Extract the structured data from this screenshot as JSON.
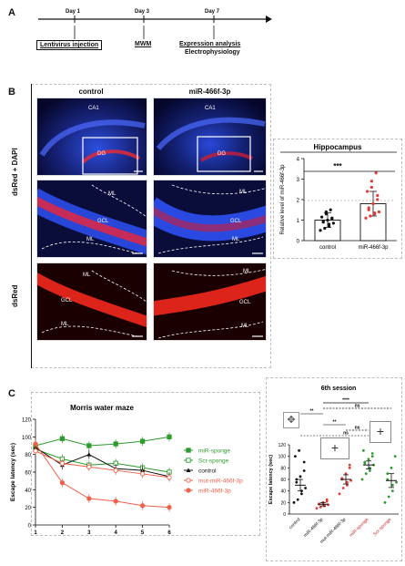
{
  "panel_a": {
    "letter": "A",
    "timeline": [
      {
        "day": "Day 1",
        "label": "Lentivirus injection",
        "boxed": true
      },
      {
        "day": "Day 3",
        "label": "MWM",
        "boxed": false
      },
      {
        "day": "Day 7",
        "label": "Expression analysis",
        "label2": "Electrophysiology",
        "boxed": false
      }
    ]
  },
  "panel_b": {
    "letter": "B",
    "col_titles": [
      "control",
      "miR-466f-3p"
    ],
    "row_labels": [
      "dsRed + DAPI",
      "dsRed"
    ],
    "region_labels": {
      "ca1": "CA1",
      "dg": "DG",
      "ml": "ML",
      "gcl": "GCL"
    },
    "colors": {
      "dapi": "#1f3fbf",
      "dsred": "#d81b1b"
    }
  },
  "panel_b_chart": {
    "chart_data": {
      "type": "bar",
      "title": "Hippocampus",
      "ylabel": "Relative level of miR-466f-3p",
      "categories": [
        "control",
        "miR-466f-3p"
      ],
      "values": [
        1.0,
        1.8
      ],
      "errors": [
        0.35,
        0.6
      ],
      "points": [
        [
          0.5,
          0.6,
          0.7,
          0.8,
          0.85,
          0.9,
          0.95,
          1.0,
          1.05,
          1.1,
          1.15,
          1.3,
          1.4,
          1.5
        ],
        [
          1.1,
          1.2,
          1.3,
          1.35,
          1.4,
          1.5,
          1.6,
          1.8,
          2.0,
          2.2,
          2.4,
          2.6,
          2.9,
          3.3
        ]
      ],
      "ylim": [
        0,
        4
      ],
      "yticks": [
        "0",
        "1",
        "2",
        "3",
        "4"
      ],
      "significance": "***",
      "colors": {
        "control": "#111111",
        "treatment": "#e53935"
      }
    }
  },
  "panel_c": {
    "letter": "C",
    "line_chart": {
      "chart_data": {
        "type": "line",
        "title": "Morris water maze",
        "xlabel": "Session",
        "ylabel": "Escape latency (sec)",
        "x": [
          1,
          2,
          3,
          4,
          5,
          6
        ],
        "xticks": [
          "1",
          "2",
          "3",
          "4",
          "5",
          "6"
        ],
        "ylim": [
          0,
          120
        ],
        "yticks": [
          "0",
          "20",
          "40",
          "60",
          "80",
          "100",
          "120"
        ],
        "series": [
          {
            "name": "miR-sponge",
            "color": "#2e9b2e",
            "marker": "filled-square",
            "values": [
              90,
              98,
              90,
              92,
              95,
              100
            ]
          },
          {
            "name": "Scr-sponge",
            "color": "#2e9b2e",
            "marker": "open-square",
            "values": [
              86,
              75,
              68,
              70,
              65,
              60
            ]
          },
          {
            "name": "control",
            "color": "#111111",
            "marker": "triangle",
            "values": [
              88,
              68,
              80,
              64,
              62,
              55
            ]
          },
          {
            "name": "mut-miR-466f-3p",
            "color": "#f0604a",
            "marker": "open-circle",
            "values": [
              84,
              70,
              66,
              62,
              58,
              54
            ]
          },
          {
            "name": "miR-466f-3p",
            "color": "#f0604a",
            "marker": "filled-circle",
            "values": [
              92,
              48,
              30,
              27,
              22,
              20
            ]
          }
        ]
      }
    },
    "scatter_chart": {
      "chart_data": {
        "type": "scatter",
        "title": "6th session",
        "ylabel": "Escape latency (sec)",
        "ylim": [
          0,
          120
        ],
        "yticks": [
          "0",
          "20",
          "40",
          "60",
          "80",
          "100",
          "120"
        ],
        "categories": [
          "control",
          "miR-466f-3p",
          "mut-miR-466f-3p",
          "miR-sponge",
          "Scr-sponge"
        ],
        "means": [
          50,
          17,
          60,
          85,
          58
        ],
        "errors": [
          10,
          3,
          8,
          7,
          12
        ],
        "points": [
          [
            20,
            25,
            35,
            40,
            45,
            55,
            60,
            65,
            75,
            90,
            100,
            110
          ],
          [
            10,
            12,
            14,
            15,
            16,
            17,
            18,
            20,
            22,
            25
          ],
          [
            35,
            45,
            50,
            55,
            58,
            60,
            62,
            70,
            80,
            85
          ],
          [
            60,
            70,
            75,
            80,
            85,
            88,
            90,
            95,
            100,
            105,
            110
          ],
          [
            20,
            30,
            40,
            50,
            55,
            60,
            70,
            80,
            100
          ]
        ],
        "colors": [
          "#111111",
          "#e53935",
          "#e53935",
          "#2e9b2e",
          "#2e9b2e"
        ],
        "significance": [
          "**",
          "****",
          "**",
          "ns",
          "ns",
          "ns"
        ]
      }
    }
  }
}
